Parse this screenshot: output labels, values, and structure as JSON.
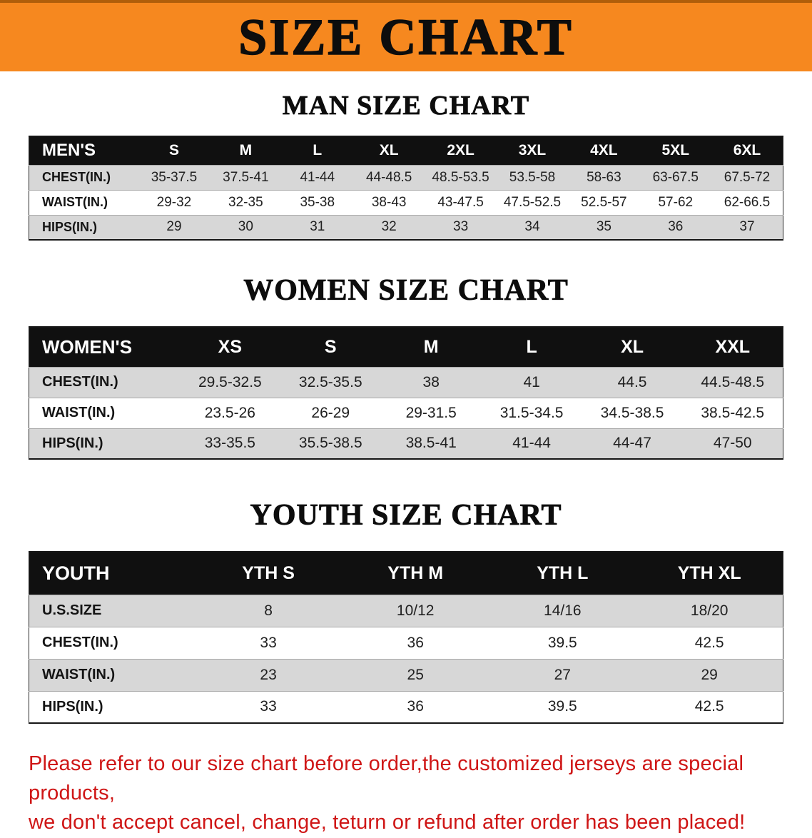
{
  "banner": {
    "title": "SIZE CHART"
  },
  "colors": {
    "banner-orange": "#f6881f",
    "banner-edge": "#b05e0a",
    "table-header-bg": "#101010",
    "row-gray": "#d7d7d7",
    "text-dark": "#1a1a1a",
    "disclaimer-red": "#cf1616"
  },
  "sections": [
    {
      "id": "men",
      "heading": "MAN SIZE CHART",
      "header": [
        "MEN'S",
        "S",
        "M",
        "L",
        "XL",
        "2XL",
        "3XL",
        "4XL",
        "5XL",
        "6XL"
      ],
      "rows": [
        {
          "key": "chest",
          "label": "CHEST(IN.)",
          "values": [
            "35-37.5",
            "37.5-41",
            "41-44",
            "44-48.5",
            "48.5-53.5",
            "53.5-58",
            "58-63",
            "63-67.5",
            "67.5-72"
          ]
        },
        {
          "key": "waist",
          "label": "WAIST(IN.)",
          "values": [
            "29-32",
            "32-35",
            "35-38",
            "38-43",
            "43-47.5",
            "47.5-52.5",
            "52.5-57",
            "57-62",
            "62-66.5"
          ]
        },
        {
          "key": "hips",
          "label": "HIPS(IN.)",
          "values": [
            "29",
            "30",
            "31",
            "32",
            "33",
            "34",
            "35",
            "36",
            "37"
          ]
        }
      ]
    },
    {
      "id": "women",
      "heading": "WOMEN SIZE CHART",
      "header": [
        "WOMEN'S",
        "XS",
        "S",
        "M",
        "L",
        "XL",
        "XXL"
      ],
      "rows": [
        {
          "key": "chest",
          "label": "CHEST(IN.)",
          "values": [
            "29.5-32.5",
            "32.5-35.5",
            "38",
            "41",
            "44.5",
            "44.5-48.5"
          ]
        },
        {
          "key": "waist",
          "label": "WAIST(IN.)",
          "values": [
            "23.5-26",
            "26-29",
            "29-31.5",
            "31.5-34.5",
            "34.5-38.5",
            "38.5-42.5"
          ]
        },
        {
          "key": "hips",
          "label": "HIPS(IN.)",
          "values": [
            "33-35.5",
            "35.5-38.5",
            "38.5-41",
            "41-44",
            "44-47",
            "47-50"
          ]
        }
      ]
    },
    {
      "id": "youth",
      "heading": "YOUTH SIZE CHART",
      "header": [
        "YOUTH",
        "YTH S",
        "YTH M",
        "YTH L",
        "YTH XL"
      ],
      "rows": [
        {
          "key": "us-size",
          "label": "U.S.SIZE",
          "values": [
            "8",
            "10/12",
            "14/16",
            "18/20"
          ]
        },
        {
          "key": "chest",
          "label": "CHEST(IN.)",
          "values": [
            "33",
            "36",
            "39.5",
            "42.5"
          ]
        },
        {
          "key": "waist",
          "label": "WAIST(IN.)",
          "values": [
            "23",
            "25",
            "27",
            "29"
          ]
        },
        {
          "key": "hips",
          "label": "HIPS(IN.)",
          "values": [
            "33",
            "36",
            "39.5",
            "42.5"
          ]
        }
      ]
    }
  ],
  "disclaimer": {
    "line1": "Please refer to our size chart before order,the customized jerseys are special products,",
    "line2": "we don't accept cancel, change, teturn or refund after order has been placed!"
  }
}
